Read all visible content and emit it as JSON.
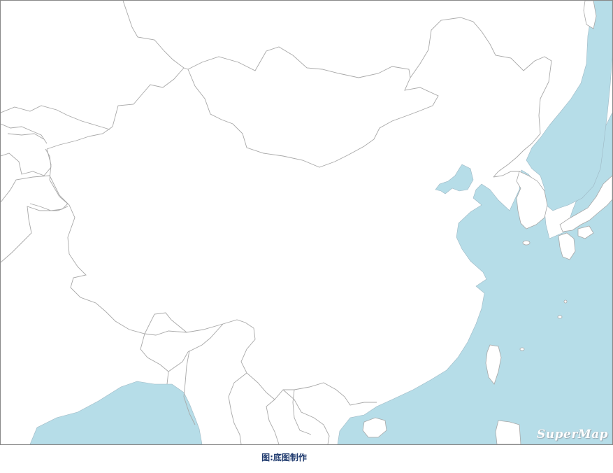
{
  "map": {
    "watermark": "SuperMap",
    "colors": {
      "land": "#ffffff",
      "water": "#b6dde8",
      "border": "#a8a8a8",
      "frame": "#888888"
    }
  },
  "caption": "图:底图制作"
}
